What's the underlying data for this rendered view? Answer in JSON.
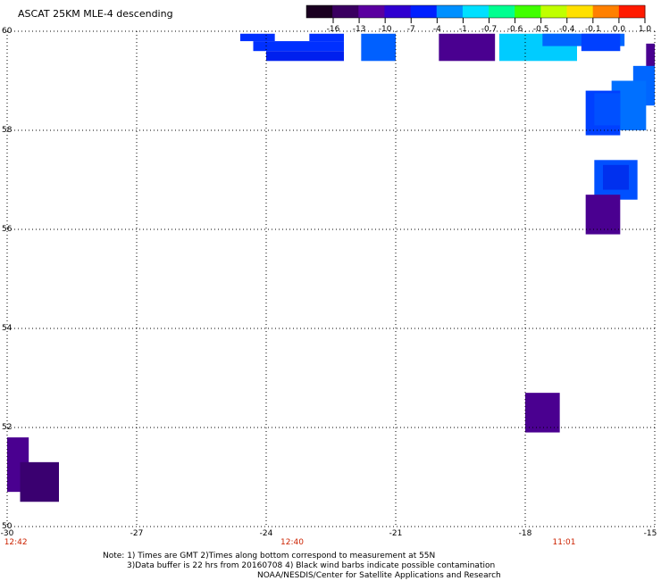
{
  "title": "ASCAT 25KM MLE-4 descending",
  "colorbar": {
    "labels": [
      "-16",
      "-13",
      "-10",
      "-7",
      "-4",
      "-1",
      "-0.7",
      "-0.6",
      "-0.5",
      "-0.4",
      "-0.1",
      "0.0",
      "1.0"
    ],
    "colors": [
      "#1a0020",
      "#3a0060",
      "#5a00a0",
      "#3000d0",
      "#0020ff",
      "#0090ff",
      "#00e0ff",
      "#00ff90",
      "#40ff00",
      "#c0ff00",
      "#ffe000",
      "#ff8000",
      "#ff1a00"
    ]
  },
  "map": {
    "lon_range": [
      -30,
      -15
    ],
    "lat_range": [
      50,
      60
    ],
    "lon_ticks": [
      "-30",
      "-27",
      "-24",
      "-21",
      "-18",
      "-15"
    ],
    "lat_ticks": [
      "60",
      "58",
      "56",
      "54",
      "52",
      "50"
    ],
    "times": [
      {
        "label": "12:42",
        "lon": -29.8
      },
      {
        "label": "12:40",
        "lon": -23.4
      },
      {
        "label": "11:01",
        "lon": -17.1
      }
    ],
    "cells": [
      {
        "lon": [
          -24.6,
          -23.8
        ],
        "lat": [
          59.8,
          59.95
        ],
        "color": "#0030ff"
      },
      {
        "lon": [
          -24.3,
          -22.2
        ],
        "lat": [
          59.6,
          59.8
        ],
        "color": "#0030ff"
      },
      {
        "lon": [
          -24.0,
          -22.2
        ],
        "lat": [
          59.4,
          59.6
        ],
        "color": "#0020ee"
      },
      {
        "lon": [
          -23.0,
          -22.2
        ],
        "lat": [
          59.8,
          59.95
        ],
        "color": "#0030ff"
      },
      {
        "lon": [
          -21.8,
          -21.0
        ],
        "lat": [
          59.4,
          59.95
        ],
        "color": "#0060ff"
      },
      {
        "lon": [
          -20.0,
          -18.7
        ],
        "lat": [
          59.4,
          59.95
        ],
        "color": "#4a0090"
      },
      {
        "lon": [
          -18.6,
          -16.8
        ],
        "lat": [
          59.4,
          59.95
        ],
        "color": "#00ccff"
      },
      {
        "lon": [
          -17.6,
          -15.7
        ],
        "lat": [
          59.7,
          59.95
        ],
        "color": "#0066ff"
      },
      {
        "lon": [
          -16.7,
          -15.8
        ],
        "lat": [
          59.6,
          59.95
        ],
        "color": "#0040ff"
      },
      {
        "lon": [
          -15.2,
          -15.0
        ],
        "lat": [
          59.1,
          59.75
        ],
        "color": "#4a0090"
      },
      {
        "lon": [
          -15.5,
          -15.0
        ],
        "lat": [
          58.5,
          59.3
        ],
        "color": "#0066ff"
      },
      {
        "lon": [
          -16.0,
          -15.2
        ],
        "lat": [
          58.0,
          59.0
        ],
        "color": "#0070ff"
      },
      {
        "lon": [
          -16.6,
          -15.8
        ],
        "lat": [
          57.9,
          58.8
        ],
        "color": "#0040ff"
      },
      {
        "lon": [
          -16.4,
          -15.8
        ],
        "lat": [
          58.1,
          58.75
        ],
        "color": "#0050ff"
      },
      {
        "lon": [
          -16.4,
          -15.4
        ],
        "lat": [
          56.6,
          57.4
        ],
        "color": "#0050ff"
      },
      {
        "lon": [
          -16.2,
          -15.6
        ],
        "lat": [
          56.8,
          57.3
        ],
        "color": "#0030ee"
      },
      {
        "lon": [
          -16.6,
          -15.8
        ],
        "lat": [
          55.9,
          56.7
        ],
        "color": "#4a0090"
      },
      {
        "lon": [
          -18.0,
          -17.2
        ],
        "lat": [
          51.9,
          52.7
        ],
        "color": "#4a0090"
      },
      {
        "lon": [
          -30.0,
          -29.5
        ],
        "lat": [
          50.7,
          51.8
        ],
        "color": "#4a0090"
      },
      {
        "lon": [
          -29.7,
          -28.8
        ],
        "lat": [
          50.5,
          51.3
        ],
        "color": "#3a0070"
      }
    ]
  },
  "notes": [
    "Note: 1) Times are GMT 2)Times along bottom correspond to measurement at 55N",
    "3)Data buffer is 22 hrs from 20160708 4) Black wind barbs indicate possible contamination",
    "NOAA/NESDIS/Center for Satellite Applications and Research"
  ]
}
